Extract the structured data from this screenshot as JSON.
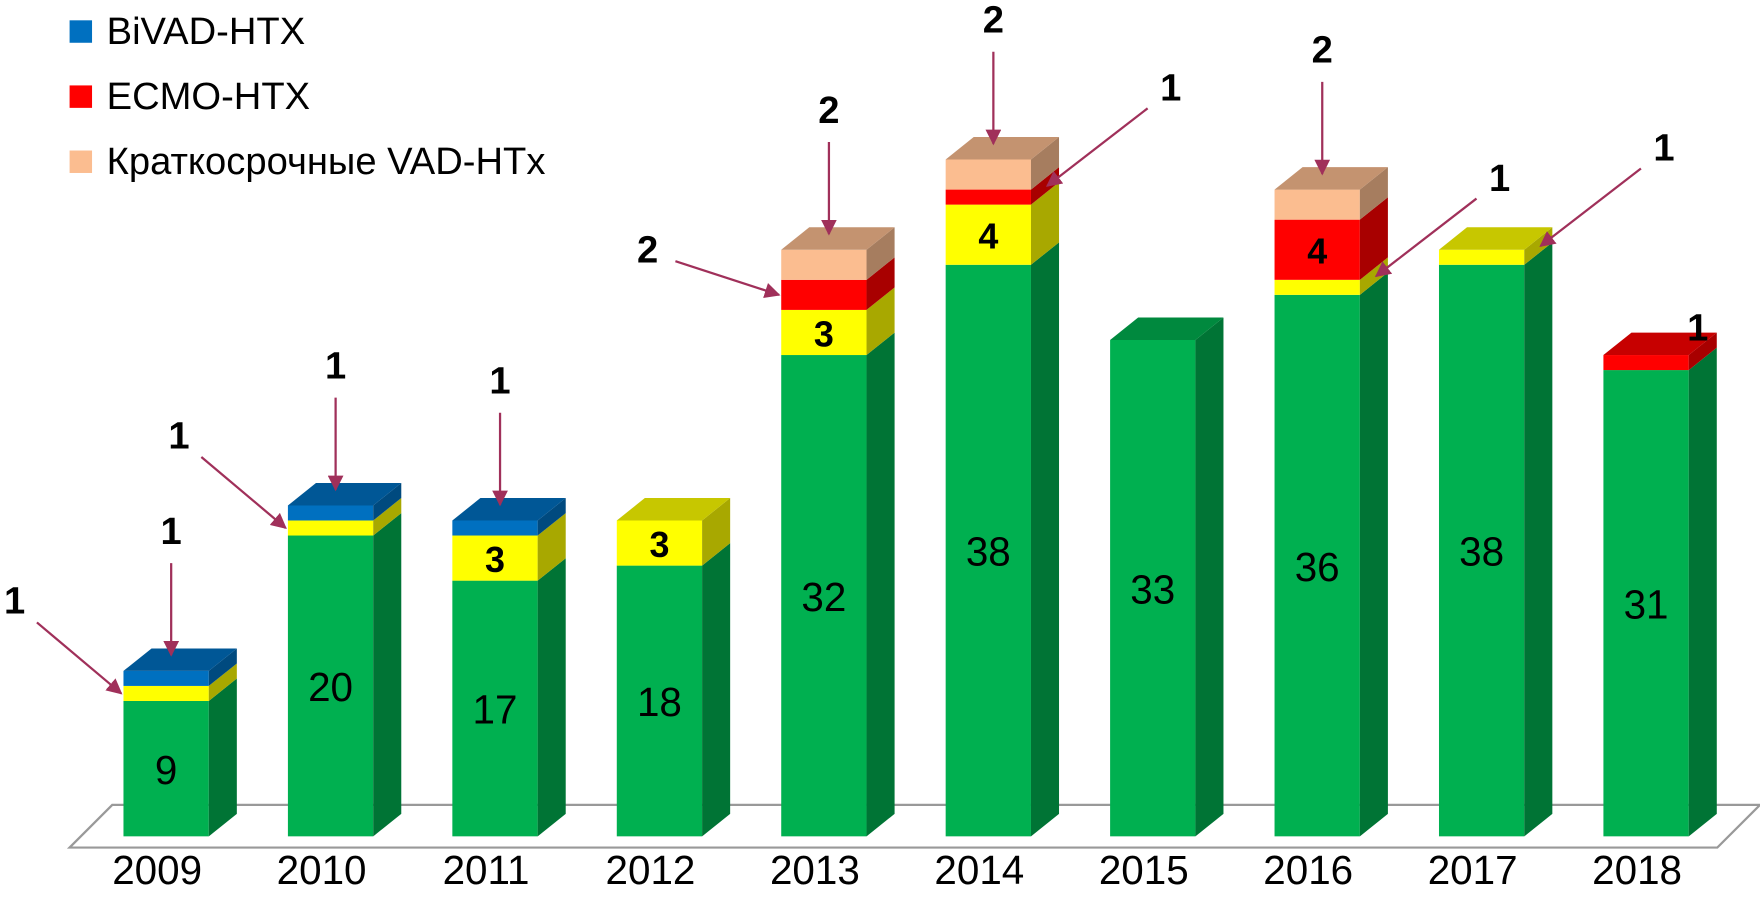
{
  "chart_data": {
    "type": "bar3d_stacked",
    "categories": [
      "2009",
      "2010",
      "2011",
      "2012",
      "2013",
      "2014",
      "2015",
      "2016",
      "2017",
      "2018"
    ],
    "ylim": [
      0,
      45
    ],
    "series": [
      {
        "color": "#00b050",
        "values": [
          9,
          20,
          17,
          18,
          32,
          38,
          33,
          36,
          38,
          31
        ]
      },
      {
        "color": "#ffff00",
        "values": [
          1,
          1,
          3,
          3,
          3,
          4,
          null,
          1,
          1,
          null
        ]
      },
      {
        "name": "ECMO-HTX",
        "color": "#ff0000",
        "values": [
          null,
          null,
          null,
          null,
          2,
          1,
          null,
          4,
          null,
          1
        ]
      },
      {
        "name": "Краткосрочные VAD-HTx",
        "color": "#fbbd90",
        "values": [
          null,
          null,
          null,
          null,
          2,
          2,
          null,
          2,
          null,
          null
        ]
      },
      {
        "name": "BiVAD-HTX",
        "color": "#0070c0",
        "values": [
          1,
          1,
          1,
          null,
          null,
          null,
          null,
          null,
          null,
          null
        ]
      }
    ],
    "legend_order": [
      4,
      2,
      3
    ]
  }
}
